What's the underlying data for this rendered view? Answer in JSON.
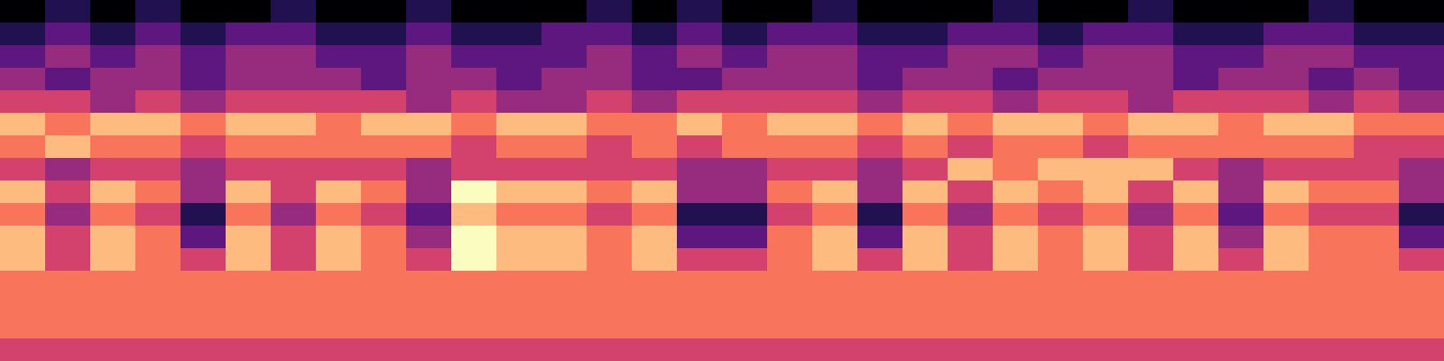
{
  "chart_data": {
    "type": "heatmap",
    "color": "magma",
    "tick_labels": false,
    "cells": [
      [
        1,
        2,
        1,
        2,
        1,
        1,
        2,
        1,
        1,
        2,
        1,
        1,
        1,
        2,
        1,
        2,
        1,
        1,
        2,
        1,
        1,
        1,
        2,
        1,
        1,
        2,
        1,
        1,
        1,
        2,
        1,
        1
      ],
      [
        2,
        3,
        2,
        3,
        2,
        3,
        3,
        2,
        2,
        3,
        2,
        2,
        3,
        3,
        2,
        3,
        2,
        3,
        3,
        2,
        2,
        3,
        3,
        2,
        3,
        3,
        2,
        2,
        3,
        3,
        2,
        2
      ],
      [
        3,
        4,
        3,
        4,
        3,
        4,
        4,
        3,
        3,
        4,
        3,
        3,
        3,
        4,
        3,
        4,
        3,
        4,
        4,
        3,
        3,
        4,
        4,
        3,
        4,
        4,
        3,
        3,
        4,
        4,
        3,
        3
      ],
      [
        4,
        3,
        4,
        4,
        3,
        4,
        4,
        4,
        3,
        4,
        4,
        3,
        4,
        4,
        3,
        3,
        4,
        4,
        4,
        3,
        4,
        4,
        3,
        4,
        4,
        4,
        3,
        4,
        4,
        3,
        4,
        3
      ],
      [
        5,
        5,
        4,
        5,
        4,
        5,
        5,
        5,
        5,
        4,
        5,
        4,
        4,
        5,
        4,
        5,
        5,
        5,
        5,
        4,
        5,
        5,
        4,
        5,
        5,
        4,
        5,
        5,
        5,
        4,
        5,
        4
      ],
      [
        7,
        6,
        7,
        7,
        6,
        7,
        7,
        6,
        7,
        7,
        6,
        7,
        7,
        6,
        6,
        7,
        6,
        7,
        7,
        6,
        7,
        6,
        7,
        7,
        6,
        7,
        7,
        6,
        7,
        7,
        6,
        6
      ],
      [
        6,
        7,
        6,
        6,
        5,
        6,
        6,
        6,
        6,
        6,
        5,
        6,
        6,
        5,
        6,
        5,
        6,
        6,
        6,
        5,
        6,
        5,
        6,
        6,
        5,
        6,
        6,
        6,
        6,
        6,
        5,
        5
      ],
      [
        5,
        4,
        5,
        5,
        4,
        5,
        5,
        5,
        5,
        4,
        5,
        5,
        5,
        5,
        5,
        4,
        4,
        5,
        5,
        4,
        5,
        7,
        6,
        7,
        7,
        7,
        5,
        4,
        5,
        5,
        5,
        4
      ],
      [
        7,
        5,
        7,
        6,
        4,
        7,
        5,
        7,
        6,
        4,
        8,
        7,
        7,
        6,
        7,
        4,
        4,
        6,
        7,
        4,
        7,
        5,
        7,
        6,
        7,
        5,
        7,
        4,
        7,
        6,
        6,
        4
      ],
      [
        6,
        4,
        6,
        5,
        2,
        6,
        4,
        6,
        5,
        3,
        7,
        6,
        6,
        5,
        6,
        2,
        2,
        5,
        6,
        2,
        6,
        4,
        6,
        5,
        6,
        4,
        6,
        3,
        6,
        5,
        5,
        2
      ],
      [
        7,
        5,
        7,
        6,
        3,
        7,
        5,
        7,
        6,
        4,
        8,
        7,
        7,
        6,
        7,
        3,
        3,
        6,
        7,
        3,
        7,
        5,
        7,
        6,
        7,
        5,
        7,
        4,
        7,
        6,
        6,
        3
      ],
      [
        7,
        5,
        7,
        6,
        5,
        7,
        5,
        7,
        6,
        5,
        8,
        7,
        7,
        6,
        7,
        5,
        5,
        6,
        7,
        5,
        7,
        5,
        7,
        6,
        7,
        5,
        7,
        5,
        7,
        6,
        6,
        5
      ],
      [
        6,
        6,
        6,
        6,
        6,
        6,
        6,
        6,
        6,
        6,
        6,
        6,
        6,
        6,
        6,
        6,
        6,
        6,
        6,
        6,
        6,
        6,
        6,
        6,
        6,
        6,
        6,
        6,
        6,
        6,
        6,
        6
      ],
      [
        6,
        6,
        6,
        6,
        6,
        6,
        6,
        6,
        6,
        6,
        6,
        6,
        6,
        6,
        6,
        6,
        6,
        6,
        6,
        6,
        6,
        6,
        6,
        6,
        6,
        6,
        6,
        6,
        6,
        6,
        6,
        6
      ],
      [
        6,
        6,
        6,
        6,
        6,
        6,
        6,
        6,
        6,
        6,
        6,
        6,
        6,
        6,
        6,
        6,
        6,
        6,
        6,
        6,
        6,
        6,
        6,
        6,
        6,
        6,
        6,
        6,
        6,
        6,
        6,
        6
      ],
      [
        5,
        5,
        5,
        5,
        5,
        5,
        5,
        5,
        5,
        5,
        5,
        5,
        5,
        5,
        5,
        5,
        5,
        5,
        5,
        5,
        5,
        5,
        5,
        5,
        5,
        5,
        5,
        5,
        5,
        5,
        5,
        5
      ]
    ]
  }
}
